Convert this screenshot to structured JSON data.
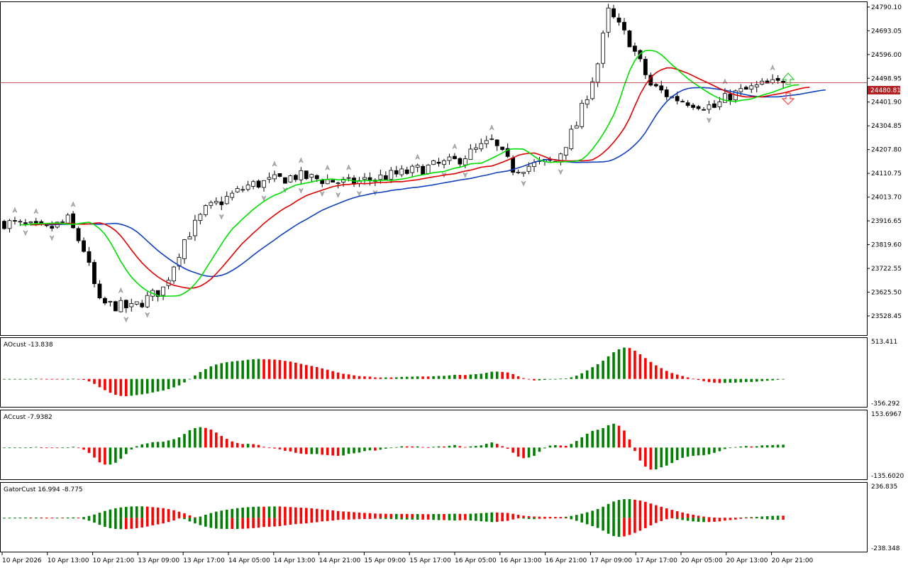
{
  "colors": {
    "bull": "#008000",
    "bear": "#ff0000",
    "gator_lips": "#00e000",
    "gator_teeth": "#e00000",
    "gator_jaw": "#1040c0",
    "price_line": "#b22222",
    "frame": "#000000",
    "fractal": "#808080"
  },
  "price_panel": {
    "ylim": [
      23450,
      24810
    ],
    "ticks": [
      "24790.10",
      "24693.05",
      "24596.00",
      "24498.95",
      "24401.90",
      "24304.85",
      "24207.80",
      "24110.75",
      "24013.70",
      "23916.65",
      "23819.60",
      "23722.55",
      "23625.50",
      "23528.45"
    ],
    "current_price": "24480.81",
    "current_value": 24480.81
  },
  "x_axis": {
    "labels": [
      "10 Apr 2026",
      "10 Apr 13:00",
      "10 Apr 21:00",
      "13 Apr 09:00",
      "13 Apr 17:00",
      "14 Apr 05:00",
      "14 Apr 13:00",
      "14 Apr 21:00",
      "15 Apr 09:00",
      "15 Apr 17:00",
      "16 Apr 05:00",
      "16 Apr 13:00",
      "16 Apr 21:00",
      "17 Apr 09:00",
      "17 Apr 17:00",
      "20 Apr 05:00",
      "20 Apr 13:00",
      "20 Apr 21:00"
    ]
  },
  "ao_panel": {
    "label": "AOcust -13.838",
    "ticks": [
      "513.411",
      "-356.292"
    ],
    "ylim": [
      -356.292,
      513.411
    ]
  },
  "ac_panel": {
    "label": "ACcust -7.9382",
    "ticks": [
      "153.6967",
      "-135.6020"
    ],
    "ylim": [
      -135.602,
      153.6967
    ]
  },
  "gator_panel": {
    "label": "GatorCust 16.994 -8.775",
    "ticks": [
      "236.835",
      "-238.348"
    ],
    "ylim": [
      -238.348,
      236.835
    ]
  },
  "chart_data": {
    "type": "candlestick",
    "candle_count": 148,
    "key_closes": [
      {
        "bar": 0,
        "close": 23910
      },
      {
        "bar": 8,
        "close": 23880
      },
      {
        "bar": 12,
        "close": 23920
      },
      {
        "bar": 15,
        "close": 23800
      },
      {
        "bar": 18,
        "close": 23580
      },
      {
        "bar": 24,
        "close": 23560
      },
      {
        "bar": 30,
        "close": 23640
      },
      {
        "bar": 34,
        "close": 23840
      },
      {
        "bar": 38,
        "close": 23960
      },
      {
        "bar": 46,
        "close": 24060
      },
      {
        "bar": 55,
        "close": 24100
      },
      {
        "bar": 65,
        "close": 24070
      },
      {
        "bar": 75,
        "close": 24110
      },
      {
        "bar": 85,
        "close": 24160
      },
      {
        "bar": 92,
        "close": 24240
      },
      {
        "bar": 96,
        "close": 24130
      },
      {
        "bar": 104,
        "close": 24160
      },
      {
        "bar": 108,
        "close": 24310
      },
      {
        "bar": 112,
        "close": 24560
      },
      {
        "bar": 114,
        "close": 24770
      },
      {
        "bar": 118,
        "close": 24650
      },
      {
        "bar": 122,
        "close": 24470
      },
      {
        "bar": 126,
        "close": 24420
      },
      {
        "bar": 130,
        "close": 24400
      },
      {
        "bar": 134,
        "close": 24380
      },
      {
        "bar": 137,
        "close": 24430
      },
      {
        "bar": 140,
        "close": 24450
      },
      {
        "bar": 143,
        "close": 24470
      },
      {
        "bar": 147,
        "close": 24480.81
      }
    ]
  }
}
